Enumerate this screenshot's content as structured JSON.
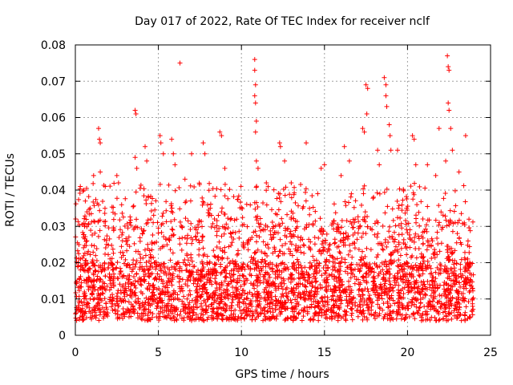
{
  "chart_data": {
    "type": "scatter",
    "title": "Day 017 of 2022, Rate Of TEC Index for receiver nclf",
    "xlabel": "GPS time / hours",
    "ylabel": "ROTI / TECUs",
    "xlim": [
      0,
      25
    ],
    "ylim": [
      0,
      0.08
    ],
    "x_ticks": [
      0,
      5,
      10,
      15,
      20,
      25
    ],
    "y_ticks": [
      0,
      0.01,
      0.02,
      0.03,
      0.04,
      0.05,
      0.06,
      0.07,
      0.08
    ],
    "x_tick_labels": [
      "0",
      "5",
      "10",
      "15",
      "20",
      "25"
    ],
    "y_tick_labels": [
      "0",
      "0.01",
      "0.02",
      "0.03",
      "0.04",
      "0.05",
      "0.06",
      "0.07",
      "0.08"
    ],
    "grid": true,
    "marker": "+",
    "marker_color": "#ff0000",
    "data_range_x": [
      0,
      24
    ],
    "bulk_band": [
      0.004,
      0.02
    ],
    "peaks": [
      {
        "x": 0.3,
        "y": 0.041
      },
      {
        "x": 0.5,
        "y": 0.04
      },
      {
        "x": 0.6,
        "y": 0.037
      },
      {
        "x": 1.1,
        "y": 0.044
      },
      {
        "x": 1.4,
        "y": 0.057
      },
      {
        "x": 1.45,
        "y": 0.054
      },
      {
        "x": 1.5,
        "y": 0.053
      },
      {
        "x": 1.5,
        "y": 0.045
      },
      {
        "x": 1.8,
        "y": 0.041
      },
      {
        "x": 2.5,
        "y": 0.044
      },
      {
        "x": 2.6,
        "y": 0.042
      },
      {
        "x": 3.6,
        "y": 0.062
      },
      {
        "x": 3.65,
        "y": 0.061
      },
      {
        "x": 3.6,
        "y": 0.049
      },
      {
        "x": 3.7,
        "y": 0.046
      },
      {
        "x": 4.2,
        "y": 0.052
      },
      {
        "x": 4.3,
        "y": 0.048
      },
      {
        "x": 5.1,
        "y": 0.055
      },
      {
        "x": 5.15,
        "y": 0.053
      },
      {
        "x": 5.3,
        "y": 0.05
      },
      {
        "x": 5.8,
        "y": 0.054
      },
      {
        "x": 5.9,
        "y": 0.05
      },
      {
        "x": 6.0,
        "y": 0.047
      },
      {
        "x": 6.3,
        "y": 0.075
      },
      {
        "x": 6.6,
        "y": 0.043
      },
      {
        "x": 7.0,
        "y": 0.05
      },
      {
        "x": 7.7,
        "y": 0.053
      },
      {
        "x": 7.8,
        "y": 0.05
      },
      {
        "x": 8.7,
        "y": 0.056
      },
      {
        "x": 8.8,
        "y": 0.055
      },
      {
        "x": 9.0,
        "y": 0.046
      },
      {
        "x": 10.8,
        "y": 0.076
      },
      {
        "x": 10.8,
        "y": 0.073
      },
      {
        "x": 10.85,
        "y": 0.069
      },
      {
        "x": 10.8,
        "y": 0.066
      },
      {
        "x": 10.85,
        "y": 0.064
      },
      {
        "x": 10.9,
        "y": 0.059
      },
      {
        "x": 10.85,
        "y": 0.056
      },
      {
        "x": 10.9,
        "y": 0.048
      },
      {
        "x": 11.0,
        "y": 0.046
      },
      {
        "x": 11.5,
        "y": 0.042
      },
      {
        "x": 12.3,
        "y": 0.053
      },
      {
        "x": 12.35,
        "y": 0.052
      },
      {
        "x": 12.6,
        "y": 0.048
      },
      {
        "x": 13.0,
        "y": 0.042
      },
      {
        "x": 13.9,
        "y": 0.053
      },
      {
        "x": 14.8,
        "y": 0.046
      },
      {
        "x": 15.0,
        "y": 0.047
      },
      {
        "x": 16.0,
        "y": 0.044
      },
      {
        "x": 16.2,
        "y": 0.052
      },
      {
        "x": 16.5,
        "y": 0.048
      },
      {
        "x": 17.5,
        "y": 0.069
      },
      {
        "x": 17.6,
        "y": 0.068
      },
      {
        "x": 17.55,
        "y": 0.061
      },
      {
        "x": 17.3,
        "y": 0.057
      },
      {
        "x": 17.4,
        "y": 0.056
      },
      {
        "x": 18.2,
        "y": 0.051
      },
      {
        "x": 18.3,
        "y": 0.047
      },
      {
        "x": 18.6,
        "y": 0.071
      },
      {
        "x": 18.7,
        "y": 0.069
      },
      {
        "x": 18.7,
        "y": 0.066
      },
      {
        "x": 18.75,
        "y": 0.063
      },
      {
        "x": 18.9,
        "y": 0.058
      },
      {
        "x": 18.95,
        "y": 0.055
      },
      {
        "x": 19.0,
        "y": 0.051
      },
      {
        "x": 19.4,
        "y": 0.051
      },
      {
        "x": 20.3,
        "y": 0.055
      },
      {
        "x": 20.4,
        "y": 0.054
      },
      {
        "x": 20.5,
        "y": 0.047
      },
      {
        "x": 21.2,
        "y": 0.047
      },
      {
        "x": 21.7,
        "y": 0.044
      },
      {
        "x": 21.9,
        "y": 0.057
      },
      {
        "x": 22.4,
        "y": 0.077
      },
      {
        "x": 22.45,
        "y": 0.074
      },
      {
        "x": 22.5,
        "y": 0.073
      },
      {
        "x": 22.45,
        "y": 0.064
      },
      {
        "x": 22.5,
        "y": 0.062
      },
      {
        "x": 22.6,
        "y": 0.057
      },
      {
        "x": 22.7,
        "y": 0.051
      },
      {
        "x": 22.3,
        "y": 0.048
      },
      {
        "x": 23.1,
        "y": 0.045
      },
      {
        "x": 23.5,
        "y": 0.055
      },
      {
        "x": 23.7,
        "y": 0.032
      }
    ]
  }
}
